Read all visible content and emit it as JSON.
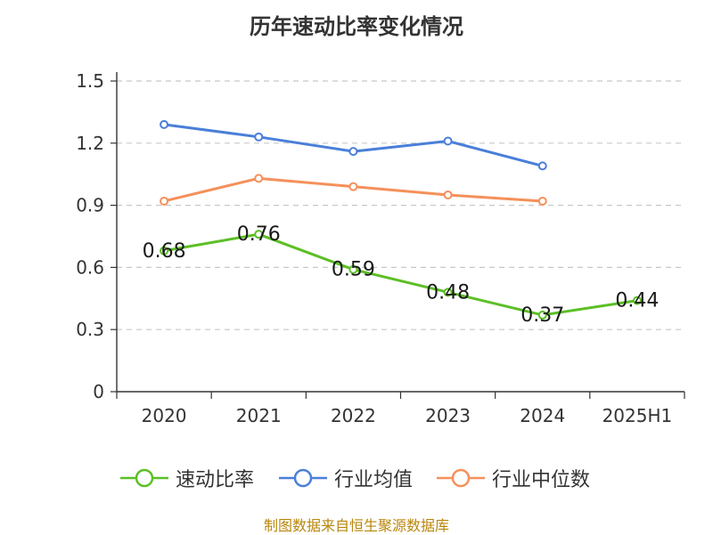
{
  "title": "历年速动比率变化情况",
  "source": "制图数据来自恒生聚源数据库",
  "chart_data": {
    "type": "line",
    "title": "历年速动比率变化情况",
    "categories": [
      "2020",
      "2021",
      "2022",
      "2023",
      "2024",
      "2025H1"
    ],
    "ylim": [
      0,
      1.5
    ],
    "yticks": [
      "0",
      "0.3",
      "0.6",
      "0.9",
      "1.2",
      "1.5"
    ],
    "ytick_values": [
      0,
      0.3,
      0.6,
      0.9,
      1.2,
      1.5
    ],
    "grid": true,
    "legend_position": "bottom",
    "series": [
      {
        "name": "速动比率",
        "color": "#5cbf25",
        "values": [
          0.68,
          0.76,
          0.59,
          0.48,
          0.37,
          0.44
        ],
        "labels": [
          "0.68",
          "0.76",
          "0.59",
          "0.48",
          "0.37",
          "0.44"
        ],
        "show_labels": true
      },
      {
        "name": "行业均值",
        "color": "#4a7fd9",
        "values": [
          1.29,
          1.23,
          1.16,
          1.21,
          1.09,
          null
        ],
        "show_labels": false
      },
      {
        "name": "行业中位数",
        "color": "#f5905a",
        "values": [
          0.92,
          1.03,
          0.99,
          0.95,
          0.92,
          null
        ],
        "show_labels": false
      }
    ]
  }
}
